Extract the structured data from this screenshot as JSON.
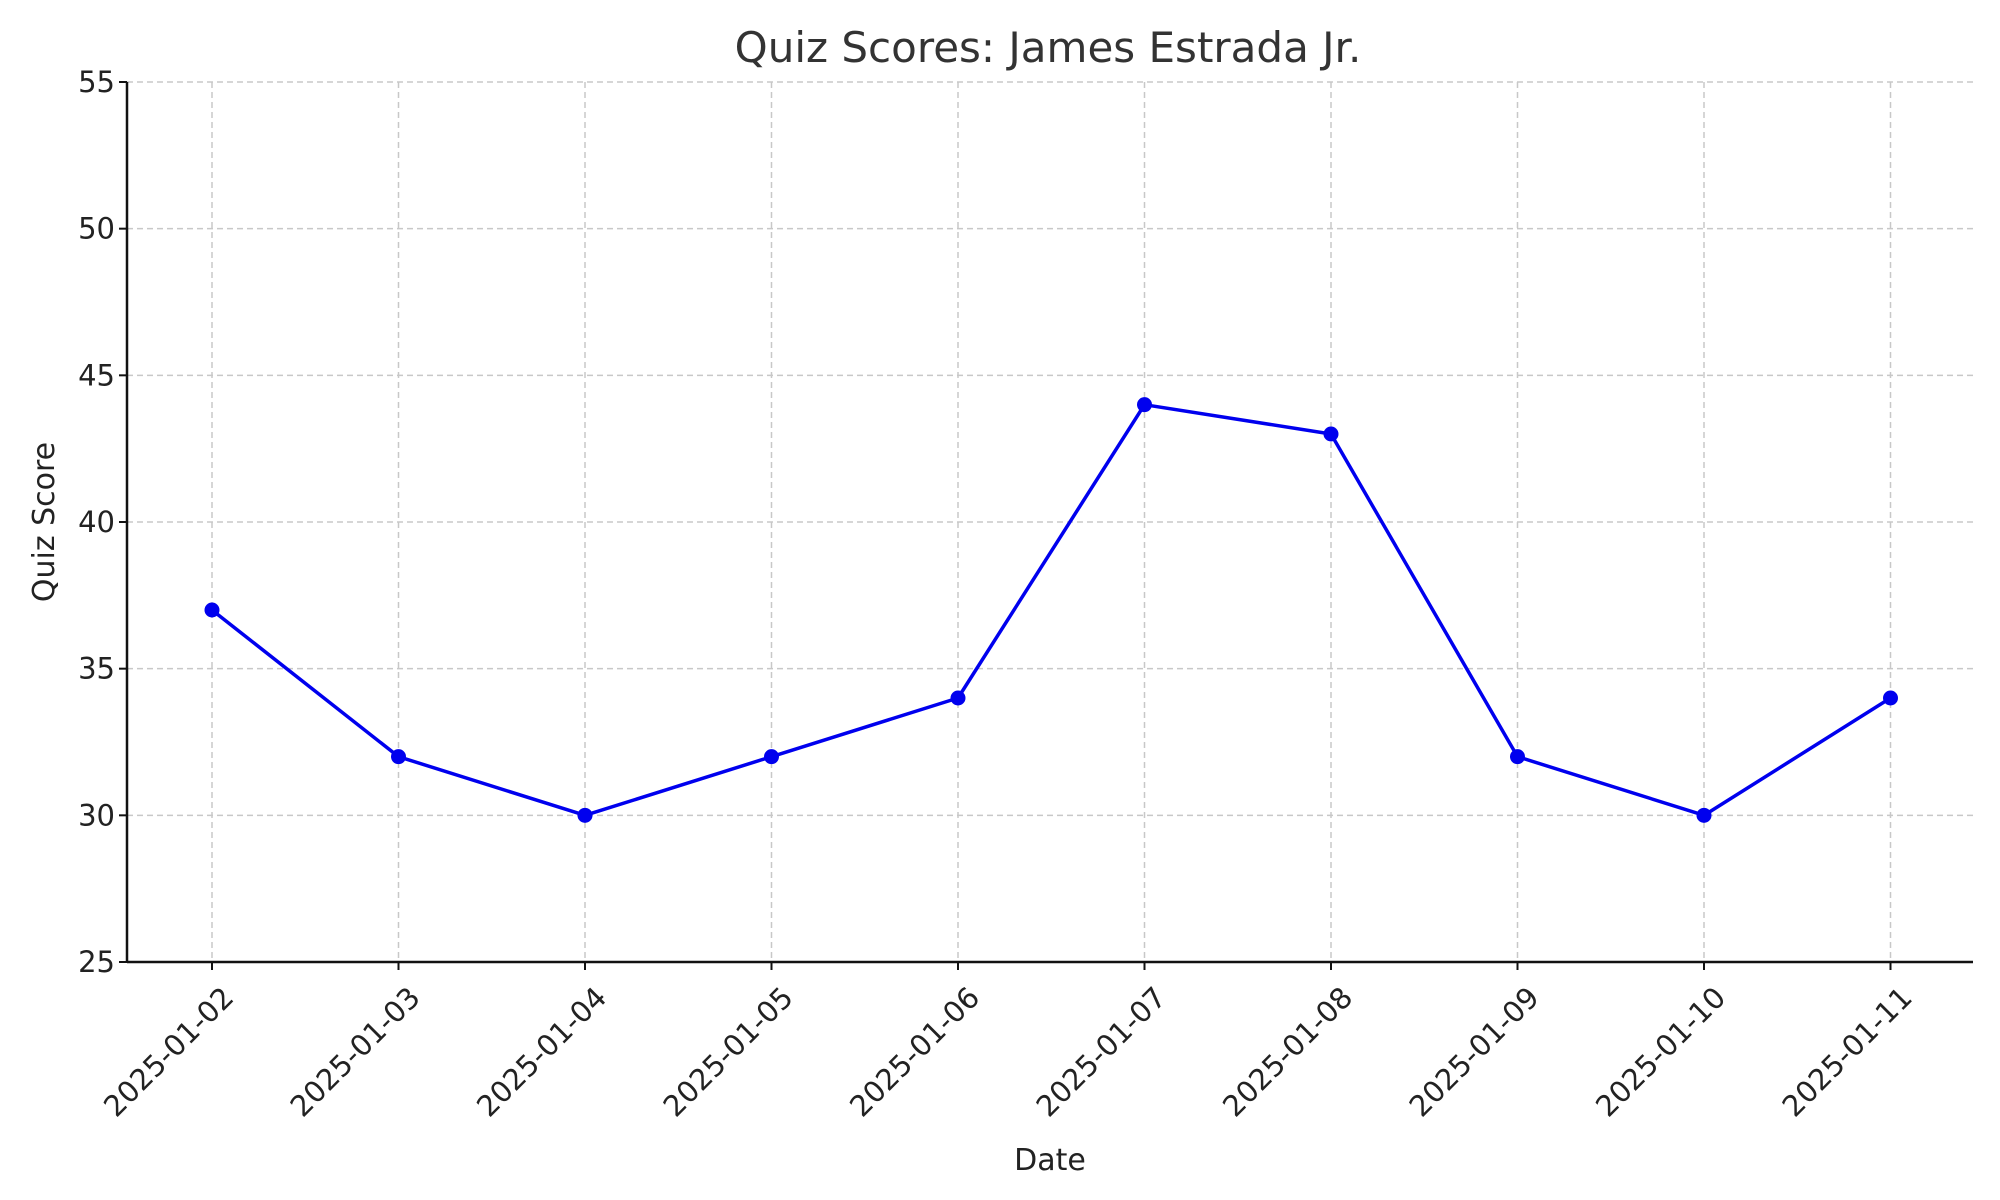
{
  "chart_data": {
    "type": "line",
    "title": "Quiz Scores: James Estrada Jr.",
    "xlabel": "Date",
    "ylabel": "Quiz Score",
    "categories": [
      "2025-01-02",
      "2025-01-03",
      "2025-01-04",
      "2025-01-05",
      "2025-01-06",
      "2025-01-07",
      "2025-01-08",
      "2025-01-09",
      "2025-01-10",
      "2025-01-11"
    ],
    "series": [
      {
        "values": [
          37,
          32,
          30,
          32,
          34,
          44,
          43,
          32,
          30,
          34
        ],
        "color": "#0000ee"
      }
    ],
    "ylim": [
      25,
      55
    ],
    "yticks": [
      25,
      30,
      35,
      40,
      45,
      50,
      55
    ],
    "grid": true,
    "marker": "circle"
  }
}
